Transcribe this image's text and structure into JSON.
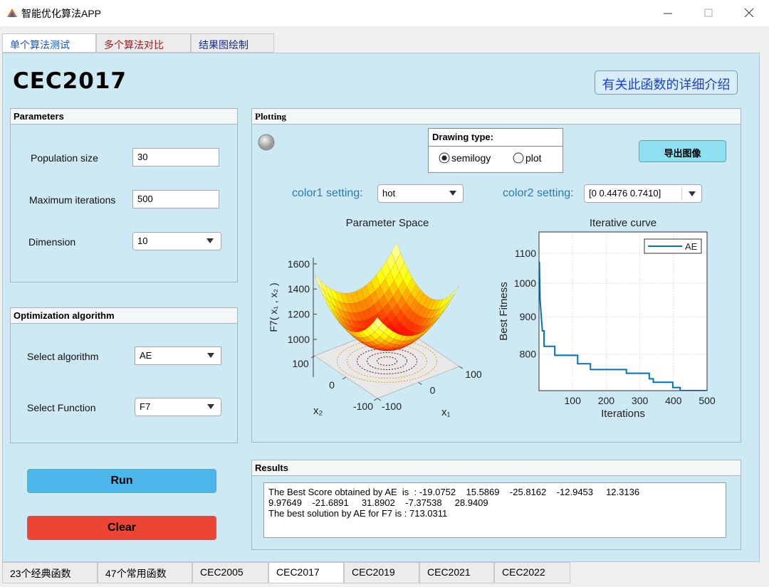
{
  "window": {
    "title": "智能优化算法APP"
  },
  "top_tabs": {
    "items": [
      "单个算法测试",
      "多个算法对比",
      "结果图绘制"
    ],
    "active": 0
  },
  "heading": "CEC2017",
  "info_button": "有关此函数的详细介绍",
  "parameters": {
    "title": "Parameters",
    "fields": [
      {
        "label": "Population size",
        "value": "30"
      },
      {
        "label": "Maximum iterations",
        "value": "500"
      },
      {
        "label": "Dimension",
        "value": "10"
      }
    ]
  },
  "optimization": {
    "title": "Optimization algorithm",
    "fields": [
      {
        "label": "Select algorithm",
        "value": "AE"
      },
      {
        "label": "Select Function",
        "value": "F7"
      }
    ]
  },
  "buttons": {
    "run": "Run",
    "clear": "Clear"
  },
  "plotting": {
    "title": "Plotting",
    "drawing_type": {
      "title": "Drawing type:",
      "options": [
        "semilogy",
        "plot"
      ],
      "selected": 0
    },
    "export_button": "导出图像",
    "color1": {
      "label": "color1 setting:",
      "value": "hot"
    },
    "color2": {
      "label": "color2 setting:",
      "value": "[0 0.4476 0.7410]"
    }
  },
  "chart_data": [
    {
      "type": "surface",
      "title": "Parameter Space",
      "xlabel": "x₁",
      "ylabel": "x₂",
      "zlabel": "F7( x₁ , x₂ )",
      "colormap": "hot",
      "xlim": [
        -100,
        100
      ],
      "xticks": [
        -100,
        0,
        100
      ],
      "ylim": [
        -100,
        100
      ],
      "yticks": [
        -100,
        0,
        100
      ],
      "zlim": [
        700,
        1650
      ],
      "zticks": [
        1000,
        1200,
        1400,
        1600
      ]
    },
    {
      "type": "line",
      "title": "Iterative curve",
      "xlabel": "Iterations",
      "ylabel": "Best Fitness",
      "log_y": true,
      "grid": true,
      "legend": "upper right",
      "xlim": [
        0,
        500
      ],
      "xticks": [
        100,
        200,
        300,
        400,
        500
      ],
      "ylim": [
        713,
        1176
      ],
      "yticks": [
        800,
        900,
        1000,
        1100
      ],
      "x": [
        1,
        3,
        6,
        10,
        15,
        15,
        47,
        47,
        115,
        115,
        153,
        153,
        260,
        260,
        328,
        328,
        340,
        340,
        398,
        398,
        420,
        420,
        500
      ],
      "series": [
        {
          "name": "AE",
          "color": "#0072bd",
          "values": [
            1071,
            953,
            911,
            861,
            861,
            820,
            820,
            797,
            797,
            776,
            776,
            762,
            762,
            753,
            753,
            740,
            740,
            732,
            732,
            720,
            720,
            713.03,
            713.03
          ]
        }
      ]
    }
  ],
  "results": {
    "title": "Results",
    "lines": [
      "The Best Score obtained by AE  is  : -19.0752    15.5869    -25.8162    -12.9453     12.3136",
      "9.97649    -21.6891     31.8902    -7.37538     28.9409",
      "The best solution by AE for F7 is : 713.0311"
    ]
  },
  "bottom_tabs": {
    "items": [
      "23个经典函数",
      "47个常用函数",
      "CEC2005",
      "CEC2017",
      "CEC2019",
      "CEC2021",
      "CEC2022"
    ],
    "active": 3
  }
}
